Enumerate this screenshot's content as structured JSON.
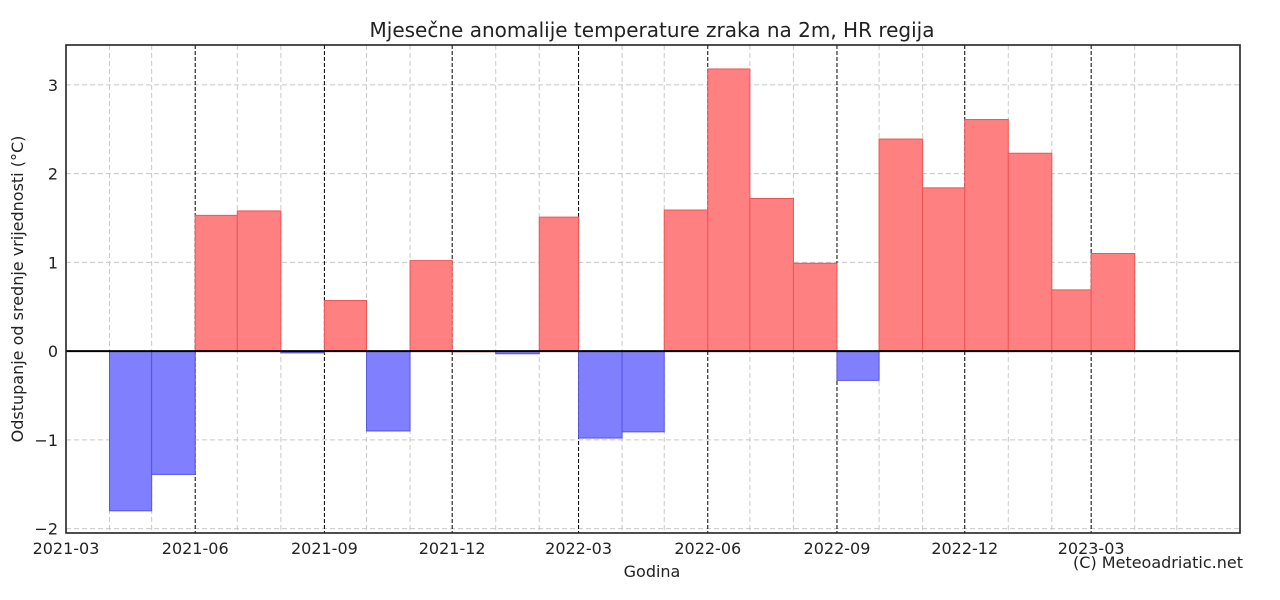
{
  "chart_data": {
    "type": "bar",
    "title": "Mjesečne anomalije temperature zraka na 2m, HR regija",
    "xlabel": "Godina",
    "ylabel": "Odstupanje od srednje vrijednosti (°C)",
    "credit": "(C) Meteoadriatic.net",
    "ylim": [
      -2.05,
      3.45
    ],
    "xlim": [
      "2021-03-01",
      "2023-06-15"
    ],
    "yticks": [
      -2,
      -1,
      0,
      1,
      2,
      3
    ],
    "ytick_labels": [
      "−2",
      "−1",
      "0",
      "1",
      "2",
      "3"
    ],
    "xticks": [
      "2021-03-01",
      "2021-06-01",
      "2021-09-01",
      "2021-12-01",
      "2022-03-01",
      "2022-06-01",
      "2022-09-01",
      "2022-12-01",
      "2023-03-01"
    ],
    "xtick_labels": [
      "2021-03",
      "2021-06",
      "2021-09",
      "2021-12",
      "2022-03",
      "2022-06",
      "2022-09",
      "2022-12",
      "2023-03"
    ],
    "grid": true,
    "positive_color": "#ff8080",
    "positive_edge": "#ee5555",
    "negative_color": "#8080ff",
    "negative_edge": "#5555dd",
    "zero_line_color": "#000000",
    "months": [
      "2021-04",
      "2021-05",
      "2021-06",
      "2021-07",
      "2021-08",
      "2021-09",
      "2021-10",
      "2021-11",
      "2021-12",
      "2022-01",
      "2022-02",
      "2022-03",
      "2022-04",
      "2022-05",
      "2022-06",
      "2022-07",
      "2022-08",
      "2022-09",
      "2022-10",
      "2022-11",
      "2022-12",
      "2023-01",
      "2023-02",
      "2023-03"
    ],
    "values": [
      -1.8,
      -1.39,
      1.53,
      1.58,
      -0.02,
      0.57,
      -0.9,
      1.02,
      0.0,
      -0.03,
      1.51,
      -0.98,
      -0.91,
      1.59,
      3.18,
      1.72,
      0.99,
      -0.33,
      2.39,
      1.84,
      2.61,
      2.23,
      0.69,
      1.1
    ]
  }
}
